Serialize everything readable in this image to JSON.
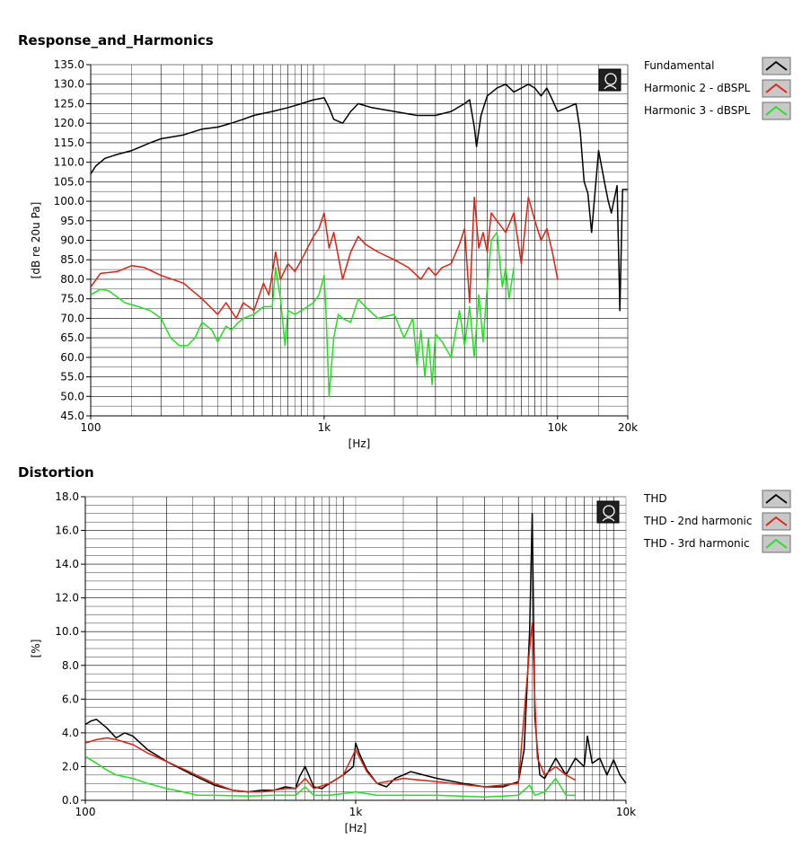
{
  "chart_data": [
    {
      "id": "response",
      "type": "line",
      "title": "Response_and_Harmonics",
      "xlabel": "[Hz]",
      "ylabel": "[dB re 20u Pa]",
      "xscale": "log",
      "xlim": [
        100,
        20000
      ],
      "ylim": [
        45,
        135
      ],
      "x_ticks": [
        100,
        1000,
        10000,
        20000
      ],
      "x_tick_labels": [
        "100",
        "1k",
        "10k",
        "20k"
      ],
      "y_ticks": [
        45.0,
        50.0,
        55.0,
        60.0,
        65.0,
        70.0,
        75.0,
        80.0,
        85.0,
        90.0,
        95.0,
        100.0,
        105.0,
        110.0,
        115.0,
        120.0,
        125.0,
        130.0,
        135.0
      ],
      "y_tick_labels": [
        "45.0",
        "50.0",
        "55.0",
        "60.0",
        "65.0",
        "70.0",
        "75.0",
        "80.0",
        "85.0",
        "90.0",
        "95.0",
        "100.0",
        "105.0",
        "110.0",
        "115.0",
        "120.0",
        "125.0",
        "130.0",
        "135.0"
      ],
      "grid": true,
      "legend_position": "right",
      "series": [
        {
          "name": "Fundamental",
          "color": "#000000",
          "x": [
            100,
            105,
            115,
            130,
            150,
            180,
            200,
            250,
            300,
            350,
            400,
            450,
            500,
            600,
            700,
            800,
            900,
            1000,
            1050,
            1100,
            1200,
            1300,
            1400,
            1600,
            2000,
            2500,
            3000,
            3500,
            4000,
            4200,
            4400,
            4500,
            4700,
            5000,
            5500,
            6000,
            6500,
            7000,
            7500,
            8000,
            8500,
            9000,
            9500,
            10000,
            11000,
            12000,
            12500,
            13000,
            13500,
            14000,
            15000,
            16000,
            16500,
            17000,
            18000,
            18500,
            19000,
            20000
          ],
          "values": [
            107,
            109,
            111,
            112,
            113,
            115,
            116,
            117,
            118.5,
            119,
            120,
            121,
            122,
            123,
            124,
            125,
            126,
            126.5,
            124,
            121,
            120,
            123,
            125,
            124,
            123,
            122,
            122,
            123,
            125,
            126,
            119,
            114,
            122,
            127,
            129,
            130,
            128,
            129,
            130,
            129,
            127,
            129,
            126,
            123,
            124,
            125,
            118,
            105,
            102,
            92,
            113,
            104,
            100,
            97,
            104,
            72,
            103,
            103
          ]
        },
        {
          "name": "Harmonic 2 - dBSPL",
          "color": "#e02010",
          "x": [
            100,
            110,
            130,
            150,
            170,
            200,
            250,
            300,
            350,
            380,
            420,
            450,
            500,
            550,
            580,
            620,
            650,
            700,
            750,
            800,
            900,
            950,
            1000,
            1050,
            1100,
            1200,
            1300,
            1400,
            1500,
            1700,
            2000,
            2300,
            2600,
            2800,
            3000,
            3200,
            3500,
            3800,
            4000,
            4200,
            4400,
            4600,
            4800,
            5000,
            5200,
            5500,
            6000,
            6500,
            7000,
            7500,
            8000,
            8500,
            9000,
            9500,
            10000
          ],
          "values": [
            78,
            81.5,
            82,
            83.5,
            83,
            81,
            79,
            75,
            71,
            74,
            70,
            74,
            72,
            79,
            76,
            87,
            80,
            84,
            82,
            85,
            91,
            93,
            97,
            88,
            92,
            80,
            87,
            91,
            89,
            87,
            85,
            83,
            80,
            83,
            81,
            83,
            84,
            89,
            93,
            74,
            101,
            88,
            92,
            87,
            97,
            95,
            92,
            97,
            84,
            101,
            95,
            90,
            93,
            87,
            80
          ]
        },
        {
          "name": "Harmonic 3 - dBSPL",
          "color": "#20e020",
          "x": [
            100,
            110,
            120,
            140,
            160,
            180,
            200,
            220,
            240,
            260,
            280,
            300,
            330,
            350,
            380,
            400,
            430,
            450,
            500,
            550,
            600,
            620,
            650,
            680,
            700,
            750,
            800,
            900,
            950,
            1000,
            1020,
            1050,
            1100,
            1150,
            1200,
            1300,
            1400,
            1500,
            1700,
            2000,
            2200,
            2400,
            2500,
            2600,
            2700,
            2800,
            2900,
            3000,
            3200,
            3500,
            3800,
            4000,
            4200,
            4400,
            4600,
            4800,
            5000,
            5200,
            5500,
            5800,
            6000,
            6200,
            6500
          ],
          "values": [
            76,
            77.5,
            77,
            74,
            73,
            72,
            70,
            65,
            63,
            63,
            65,
            69,
            67,
            64,
            68,
            67,
            69,
            70,
            71,
            73,
            73,
            83,
            75,
            63,
            72,
            71,
            72,
            74,
            76,
            81,
            71,
            50,
            65,
            71,
            70,
            69,
            75,
            73,
            70,
            71,
            65,
            70,
            58,
            67,
            55,
            65,
            53,
            66,
            64,
            60,
            72,
            63,
            73,
            60,
            76,
            64,
            78,
            90,
            92,
            78,
            83,
            75,
            83
          ]
        }
      ]
    },
    {
      "id": "distortion",
      "type": "line",
      "title": "Distortion",
      "xlabel": "[Hz]",
      "ylabel": "[%]",
      "xscale": "log",
      "xlim": [
        100,
        10000
      ],
      "ylim": [
        0,
        18
      ],
      "x_ticks": [
        100,
        1000,
        10000
      ],
      "x_tick_labels": [
        "100",
        "1k",
        "10k"
      ],
      "y_ticks": [
        0,
        2,
        4,
        6,
        8,
        10,
        12,
        14,
        16,
        18
      ],
      "y_tick_labels": [
        "0.0",
        "2.0",
        "4.0",
        "6.0",
        "8.0",
        "10.0",
        "12.0",
        "14.0",
        "16.0",
        "18.0"
      ],
      "grid": true,
      "legend_position": "right",
      "series": [
        {
          "name": "THD",
          "color": "#000000",
          "x": [
            100,
            105,
            110,
            120,
            130,
            140,
            150,
            170,
            200,
            250,
            300,
            350,
            400,
            450,
            500,
            550,
            600,
            620,
            650,
            700,
            750,
            800,
            900,
            980,
            1000,
            1030,
            1100,
            1200,
            1300,
            1400,
            1500,
            1600,
            2000,
            2500,
            3000,
            3500,
            4000,
            4200,
            4400,
            4500,
            4600,
            4700,
            4800,
            5000,
            5500,
            6000,
            6500,
            7000,
            7200,
            7500,
            8000,
            8500,
            9000,
            9500,
            10000
          ],
          "values": [
            4.5,
            4.7,
            4.8,
            4.3,
            3.7,
            4.0,
            3.8,
            3.0,
            2.3,
            1.5,
            0.9,
            0.6,
            0.5,
            0.6,
            0.6,
            0.8,
            0.7,
            1.4,
            2.0,
            0.8,
            0.7,
            1.0,
            1.5,
            2.0,
            3.4,
            2.8,
            1.8,
            1.0,
            0.8,
            1.3,
            1.5,
            1.7,
            1.3,
            1.0,
            0.8,
            0.8,
            1.1,
            3.0,
            10.0,
            17.0,
            5.0,
            3.0,
            1.5,
            1.3,
            2.5,
            1.5,
            2.5,
            2.0,
            3.8,
            2.2,
            2.5,
            1.5,
            2.4,
            1.5,
            1.0
          ]
        },
        {
          "name": "THD - 2nd harmonic",
          "color": "#e02010",
          "x": [
            100,
            110,
            120,
            130,
            150,
            170,
            200,
            250,
            300,
            350,
            400,
            450,
            500,
            550,
            600,
            650,
            700,
            800,
            900,
            1000,
            1100,
            1200,
            1500,
            2000,
            3000,
            4000,
            4400,
            4500,
            4600,
            4700,
            5000,
            5500,
            6000,
            6500
          ],
          "values": [
            3.4,
            3.6,
            3.7,
            3.6,
            3.3,
            2.8,
            2.3,
            1.6,
            1.0,
            0.6,
            0.5,
            0.5,
            0.6,
            0.7,
            0.7,
            1.3,
            0.7,
            1.0,
            1.5,
            3.0,
            1.7,
            1.0,
            1.3,
            1.1,
            0.8,
            1.0,
            9.0,
            10.5,
            6.0,
            2.5,
            1.5,
            2.0,
            1.5,
            1.2
          ]
        },
        {
          "name": "THD - 3rd harmonic",
          "color": "#20e020",
          "x": [
            100,
            110,
            120,
            130,
            150,
            170,
            200,
            230,
            260,
            300,
            400,
            500,
            600,
            650,
            700,
            800,
            900,
            1000,
            1200,
            1500,
            2000,
            3000,
            4000,
            4400,
            4600,
            5000,
            5500,
            6000,
            6500
          ],
          "values": [
            2.6,
            2.2,
            1.8,
            1.5,
            1.3,
            1.0,
            0.7,
            0.5,
            0.3,
            0.3,
            0.25,
            0.3,
            0.3,
            0.8,
            0.3,
            0.3,
            0.4,
            0.5,
            0.3,
            0.3,
            0.3,
            0.2,
            0.3,
            0.9,
            0.3,
            0.5,
            1.3,
            0.3,
            0.3
          ]
        }
      ]
    }
  ]
}
